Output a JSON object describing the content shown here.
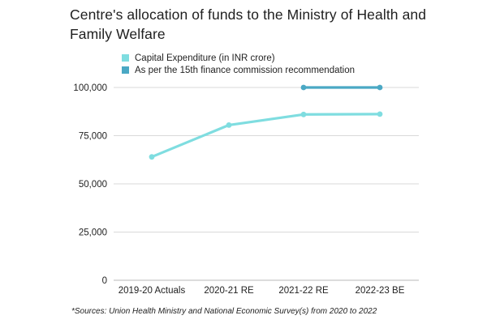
{
  "chart_data": {
    "type": "line",
    "title": "Centre's allocation of funds to the Ministry of Health and Family Welfare",
    "categories": [
      "2019-20 Actuals",
      "2020-21 RE",
      "2021-22 RE",
      "2022-23 BE"
    ],
    "series": [
      {
        "name": "Capital Expenditure (in INR crore)",
        "values": [
          64000,
          80500,
          86000,
          86200
        ],
        "color": "#7fdde0"
      },
      {
        "name": "As per the 15th finance commission recommendation",
        "values": [
          null,
          null,
          100000,
          100000
        ],
        "color": "#4aa8c4"
      }
    ],
    "y_ticks": [
      "0",
      "25,000",
      "50,000",
      "75,000",
      "100,000"
    ],
    "ylim": [
      0,
      100000
    ],
    "xlabel": "",
    "ylabel": "",
    "grid": true,
    "legend_position": "top-left",
    "source": "*Sources: Union Health Ministry and National Economic Survey(s) from 2020 to 2022"
  }
}
